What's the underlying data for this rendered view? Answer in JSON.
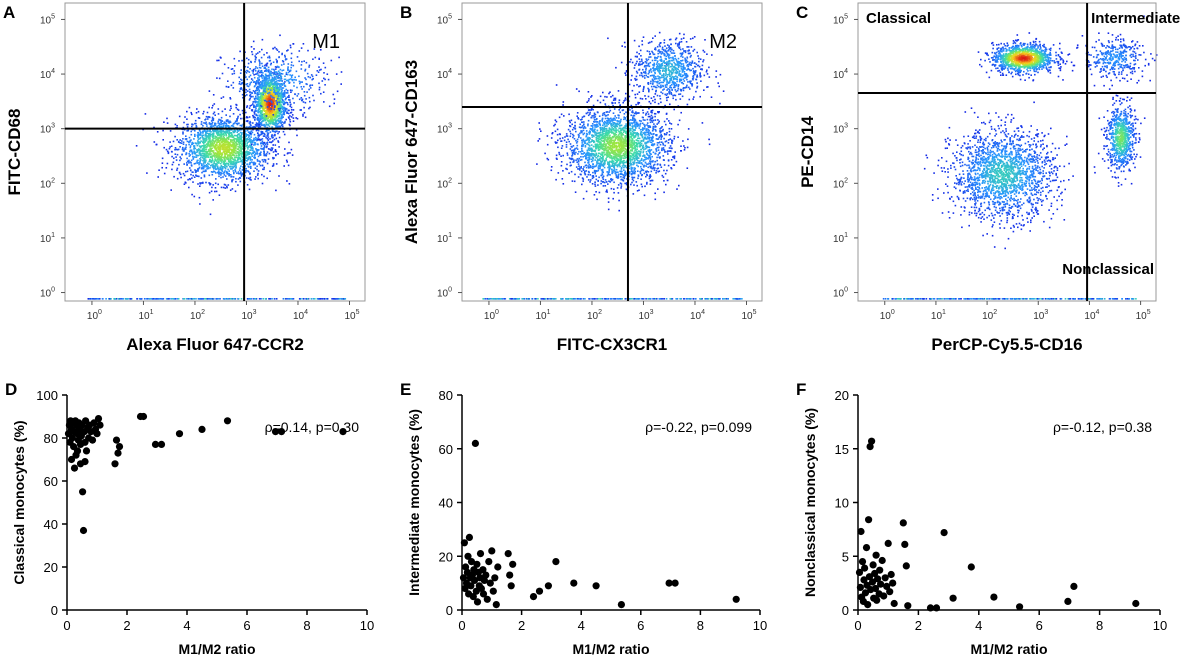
{
  "chart_data": [
    {
      "type": "heatmap",
      "panel": "A",
      "xlabel": "Alexa Fluor 647-CCR2",
      "ylabel": "FITC-CD68",
      "xlim": [
        0.3,
        200000
      ],
      "ylim": [
        0.7,
        200000
      ],
      "x_ticks": [
        {
          "base": "10",
          "exp": "0"
        },
        {
          "base": "10",
          "exp": "1"
        },
        {
          "base": "10",
          "exp": "2"
        },
        {
          "base": "10",
          "exp": "3"
        },
        {
          "base": "10",
          "exp": "4"
        },
        {
          "base": "10",
          "exp": "5"
        }
      ],
      "y_ticks": [
        {
          "base": "10",
          "exp": "0"
        },
        {
          "base": "10",
          "exp": "1"
        },
        {
          "base": "10",
          "exp": "2"
        },
        {
          "base": "10",
          "exp": "3"
        },
        {
          "base": "10",
          "exp": "4"
        },
        {
          "base": "10",
          "exp": "5"
        }
      ],
      "gate": {
        "x": 900,
        "y": 1000
      },
      "gate_labels": [
        {
          "text": "M1",
          "quadrant": "upper-right"
        }
      ],
      "populations": [
        {
          "cx": 350,
          "cy": 450,
          "sx": 0.45,
          "sy": 0.3,
          "n": 2000,
          "peak": 0.7
        },
        {
          "cx": 2800,
          "cy": 3000,
          "sx": 0.16,
          "sy": 0.28,
          "n": 1400,
          "peak": 1.0
        },
        {
          "cx": 3500,
          "cy": 8000,
          "sx": 0.5,
          "sy": 0.3,
          "n": 500,
          "peak": 0.35
        }
      ]
    },
    {
      "type": "heatmap",
      "panel": "B",
      "xlabel": "FITC-CX3CR1",
      "ylabel": "Alexa Fluor 647-CD163",
      "xlim": [
        0.3,
        200000
      ],
      "ylim": [
        0.7,
        200000
      ],
      "x_ticks": [
        {
          "base": "10",
          "exp": "0"
        },
        {
          "base": "10",
          "exp": "1"
        },
        {
          "base": "10",
          "exp": "2"
        },
        {
          "base": "10",
          "exp": "3"
        },
        {
          "base": "10",
          "exp": "4"
        },
        {
          "base": "10",
          "exp": "5"
        }
      ],
      "y_ticks": [
        {
          "base": "10",
          "exp": "0"
        },
        {
          "base": "10",
          "exp": "1"
        },
        {
          "base": "10",
          "exp": "2"
        },
        {
          "base": "10",
          "exp": "3"
        },
        {
          "base": "10",
          "exp": "4"
        },
        {
          "base": "10",
          "exp": "5"
        }
      ],
      "gate": {
        "x": 500,
        "y": 2500
      },
      "gate_labels": [
        {
          "text": "M2",
          "quadrant": "upper-right"
        }
      ],
      "populations": [
        {
          "cx": 300,
          "cy": 500,
          "sx": 0.5,
          "sy": 0.35,
          "n": 2400,
          "peak": 0.65
        },
        {
          "cx": 3000,
          "cy": 12000,
          "sx": 0.35,
          "sy": 0.28,
          "n": 800,
          "peak": 0.4
        }
      ]
    },
    {
      "type": "heatmap",
      "panel": "C",
      "xlabel": "PerCP-Cy5.5-CD16",
      "ylabel": "PE-CD14",
      "xlim": [
        0.3,
        200000
      ],
      "ylim": [
        0.7,
        200000
      ],
      "x_ticks": [
        {
          "base": "10",
          "exp": "0"
        },
        {
          "base": "10",
          "exp": "1"
        },
        {
          "base": "10",
          "exp": "2"
        },
        {
          "base": "10",
          "exp": "3"
        },
        {
          "base": "10",
          "exp": "4"
        },
        {
          "base": "10",
          "exp": "5"
        }
      ],
      "y_ticks": [
        {
          "base": "10",
          "exp": "0"
        },
        {
          "base": "10",
          "exp": "1"
        },
        {
          "base": "10",
          "exp": "2"
        },
        {
          "base": "10",
          "exp": "3"
        },
        {
          "base": "10",
          "exp": "4"
        },
        {
          "base": "10",
          "exp": "5"
        }
      ],
      "gate": {
        "x": 9000,
        "y": 4500
      },
      "gate_labels": [
        {
          "text": "Classical",
          "quadrant": "upper-left"
        },
        {
          "text": "Intermediate",
          "quadrant": "upper-right"
        },
        {
          "text": "Nonclassical",
          "quadrant": "lower-right"
        }
      ],
      "populations": [
        {
          "cx": 500,
          "cy": 20000,
          "sx": 0.3,
          "sy": 0.13,
          "n": 1200,
          "peak": 1.0
        },
        {
          "cx": 200,
          "cy": 150,
          "sx": 0.5,
          "sy": 0.4,
          "n": 1800,
          "peak": 0.45
        },
        {
          "cx": 40000,
          "cy": 700,
          "sx": 0.14,
          "sy": 0.3,
          "n": 700,
          "peak": 0.6
        },
        {
          "cx": 30000,
          "cy": 20000,
          "sx": 0.3,
          "sy": 0.18,
          "n": 350,
          "peak": 0.3
        }
      ]
    },
    {
      "type": "scatter",
      "panel": "D",
      "xlabel": "M1/M2 ratio",
      "ylabel": "Classical monocytes (%)",
      "xlim": [
        0,
        10
      ],
      "ylim": [
        0,
        100
      ],
      "x_ticks": [
        "0",
        "2",
        "4",
        "6",
        "8",
        "10"
      ],
      "y_ticks": [
        "0",
        "20",
        "40",
        "60",
        "80",
        "100"
      ],
      "annotation": "ρ=0.14, p=0.30",
      "points": [
        [
          0.05,
          82
        ],
        [
          0.08,
          86
        ],
        [
          0.1,
          78
        ],
        [
          0.12,
          88
        ],
        [
          0.15,
          84
        ],
        [
          0.18,
          80
        ],
        [
          0.2,
          87
        ],
        [
          0.22,
          76
        ],
        [
          0.25,
          83
        ],
        [
          0.28,
          88
        ],
        [
          0.3,
          72
        ],
        [
          0.32,
          86
        ],
        [
          0.35,
          82
        ],
        [
          0.38,
          79
        ],
        [
          0.4,
          87
        ],
        [
          0.42,
          84
        ],
        [
          0.45,
          68
        ],
        [
          0.48,
          81
        ],
        [
          0.5,
          86
        ],
        [
          0.52,
          55
        ],
        [
          0.55,
          37
        ],
        [
          0.58,
          83
        ],
        [
          0.6,
          78
        ],
        [
          0.62,
          88
        ],
        [
          0.65,
          74
        ],
        [
          0.7,
          85
        ],
        [
          0.72,
          80
        ],
        [
          0.75,
          86
        ],
        [
          0.8,
          83
        ],
        [
          0.85,
          79
        ],
        [
          0.9,
          87
        ],
        [
          0.95,
          84
        ],
        [
          1.0,
          82
        ],
        [
          1.05,
          89
        ],
        [
          1.1,
          86
        ],
        [
          0.15,
          70
        ],
        [
          0.25,
          66
        ],
        [
          0.35,
          74
        ],
        [
          0.45,
          77
        ],
        [
          0.6,
          69
        ],
        [
          1.6,
          68
        ],
        [
          1.65,
          79
        ],
        [
          1.7,
          73
        ],
        [
          1.75,
          76
        ],
        [
          2.45,
          90
        ],
        [
          2.55,
          90
        ],
        [
          2.95,
          77
        ],
        [
          3.15,
          77
        ],
        [
          3.75,
          82
        ],
        [
          4.5,
          84
        ],
        [
          5.35,
          88
        ],
        [
          6.95,
          83
        ],
        [
          7.15,
          83
        ],
        [
          9.2,
          83
        ]
      ]
    },
    {
      "type": "scatter",
      "panel": "E",
      "xlabel": "M1/M2 ratio",
      "ylabel": "Intermediate monocytes (%)",
      "xlim": [
        0,
        10
      ],
      "ylim": [
        0,
        80
      ],
      "x_ticks": [
        "0",
        "2",
        "4",
        "6",
        "8",
        "10"
      ],
      "y_ticks": [
        "0",
        "20",
        "40",
        "60",
        "80"
      ],
      "annotation": "ρ=-0.22, p=0.099",
      "points": [
        [
          0.05,
          12
        ],
        [
          0.08,
          25
        ],
        [
          0.1,
          8
        ],
        [
          0.12,
          16
        ],
        [
          0.15,
          10
        ],
        [
          0.18,
          14
        ],
        [
          0.2,
          20
        ],
        [
          0.22,
          6
        ],
        [
          0.25,
          27
        ],
        [
          0.28,
          12
        ],
        [
          0.3,
          9
        ],
        [
          0.32,
          18
        ],
        [
          0.35,
          13
        ],
        [
          0.38,
          5
        ],
        [
          0.4,
          15
        ],
        [
          0.42,
          11
        ],
        [
          0.45,
          62
        ],
        [
          0.48,
          7
        ],
        [
          0.5,
          17
        ],
        [
          0.52,
          3
        ],
        [
          0.55,
          14
        ],
        [
          0.58,
          9
        ],
        [
          0.6,
          12
        ],
        [
          0.62,
          21
        ],
        [
          0.65,
          8
        ],
        [
          0.7,
          15
        ],
        [
          0.72,
          6
        ],
        [
          0.75,
          11
        ],
        [
          0.8,
          13
        ],
        [
          0.85,
          4
        ],
        [
          0.9,
          18
        ],
        [
          0.95,
          10
        ],
        [
          1.0,
          22
        ],
        [
          1.05,
          7
        ],
        [
          1.1,
          12
        ],
        [
          1.15,
          2
        ],
        [
          1.2,
          16
        ],
        [
          1.55,
          21
        ],
        [
          1.6,
          13
        ],
        [
          1.65,
          9
        ],
        [
          1.7,
          17
        ],
        [
          2.4,
          5
        ],
        [
          2.6,
          7
        ],
        [
          2.9,
          9
        ],
        [
          3.15,
          18
        ],
        [
          3.75,
          10
        ],
        [
          4.5,
          9
        ],
        [
          5.35,
          2
        ],
        [
          6.95,
          10
        ],
        [
          7.15,
          10
        ],
        [
          9.2,
          4
        ]
      ]
    },
    {
      "type": "scatter",
      "panel": "F",
      "xlabel": "M1/M2 ratio",
      "ylabel": "Nonclassical monocytes (%)",
      "xlim": [
        0,
        10
      ],
      "ylim": [
        0,
        20
      ],
      "x_ticks": [
        "0",
        "2",
        "4",
        "6",
        "8",
        "10"
      ],
      "y_ticks": [
        "0",
        "5",
        "10",
        "15",
        "20"
      ],
      "annotation": "ρ=-0.12, p=0.38",
      "points": [
        [
          0.05,
          3.5
        ],
        [
          0.08,
          2.1
        ],
        [
          0.1,
          7.3
        ],
        [
          0.12,
          1.2
        ],
        [
          0.15,
          4.5
        ],
        [
          0.18,
          0.8
        ],
        [
          0.2,
          2.8
        ],
        [
          0.22,
          3.9
        ],
        [
          0.25,
          1.6
        ],
        [
          0.28,
          5.8
        ],
        [
          0.3,
          2.3
        ],
        [
          0.32,
          0.5
        ],
        [
          0.35,
          8.4
        ],
        [
          0.38,
          3.1
        ],
        [
          0.4,
          15.2
        ],
        [
          0.42,
          1.9
        ],
        [
          0.45,
          15.7
        ],
        [
          0.48,
          2.6
        ],
        [
          0.5,
          4.2
        ],
        [
          0.52,
          1.1
        ],
        [
          0.55,
          3.4
        ],
        [
          0.58,
          2.0
        ],
        [
          0.6,
          5.1
        ],
        [
          0.62,
          0.9
        ],
        [
          0.65,
          2.9
        ],
        [
          0.7,
          1.5
        ],
        [
          0.72,
          3.7
        ],
        [
          0.75,
          2.4
        ],
        [
          0.8,
          4.6
        ],
        [
          0.85,
          1.3
        ],
        [
          0.9,
          3.0
        ],
        [
          0.95,
          2.2
        ],
        [
          1.0,
          6.2
        ],
        [
          1.05,
          1.7
        ],
        [
          1.1,
          3.3
        ],
        [
          1.15,
          2.5
        ],
        [
          1.2,
          0.6
        ],
        [
          1.5,
          8.1
        ],
        [
          1.55,
          6.1
        ],
        [
          1.6,
          4.1
        ],
        [
          1.65,
          0.4
        ],
        [
          2.4,
          0.2
        ],
        [
          2.6,
          0.2
        ],
        [
          2.85,
          7.2
        ],
        [
          3.15,
          1.1
        ],
        [
          3.75,
          4.0
        ],
        [
          4.5,
          1.2
        ],
        [
          5.35,
          0.3
        ],
        [
          6.95,
          0.8
        ],
        [
          7.15,
          2.2
        ],
        [
          9.2,
          0.6
        ]
      ]
    }
  ]
}
